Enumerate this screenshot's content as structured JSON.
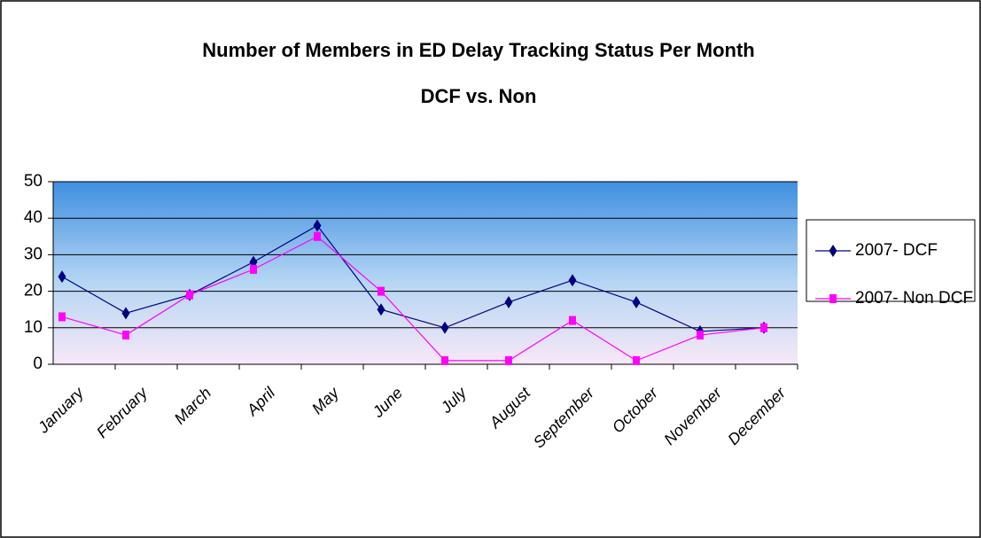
{
  "chart_data": {
    "type": "line",
    "title": "Number of Members in ED Delay Tracking Status Per Month",
    "subtitle": "DCF vs. Non",
    "categories": [
      "January",
      "February",
      "March",
      "April",
      "May",
      "June",
      "July",
      "August",
      "September",
      "October",
      "November",
      "December"
    ],
    "series": [
      {
        "name": "2007- DCF",
        "color": "#000080",
        "marker": "diamond",
        "values": [
          24,
          14,
          19,
          28,
          38,
          15,
          10,
          17,
          23,
          17,
          9,
          10
        ]
      },
      {
        "name": "2007- Non DCF",
        "color": "#ff00ff",
        "marker": "square",
        "values": [
          13,
          8,
          19,
          26,
          35,
          20,
          1,
          1,
          12,
          1,
          8,
          10
        ]
      }
    ],
    "ylim": [
      0,
      50
    ],
    "yticks": [
      0,
      10,
      20,
      30,
      40,
      50
    ],
    "grid": true,
    "legend": "right"
  }
}
